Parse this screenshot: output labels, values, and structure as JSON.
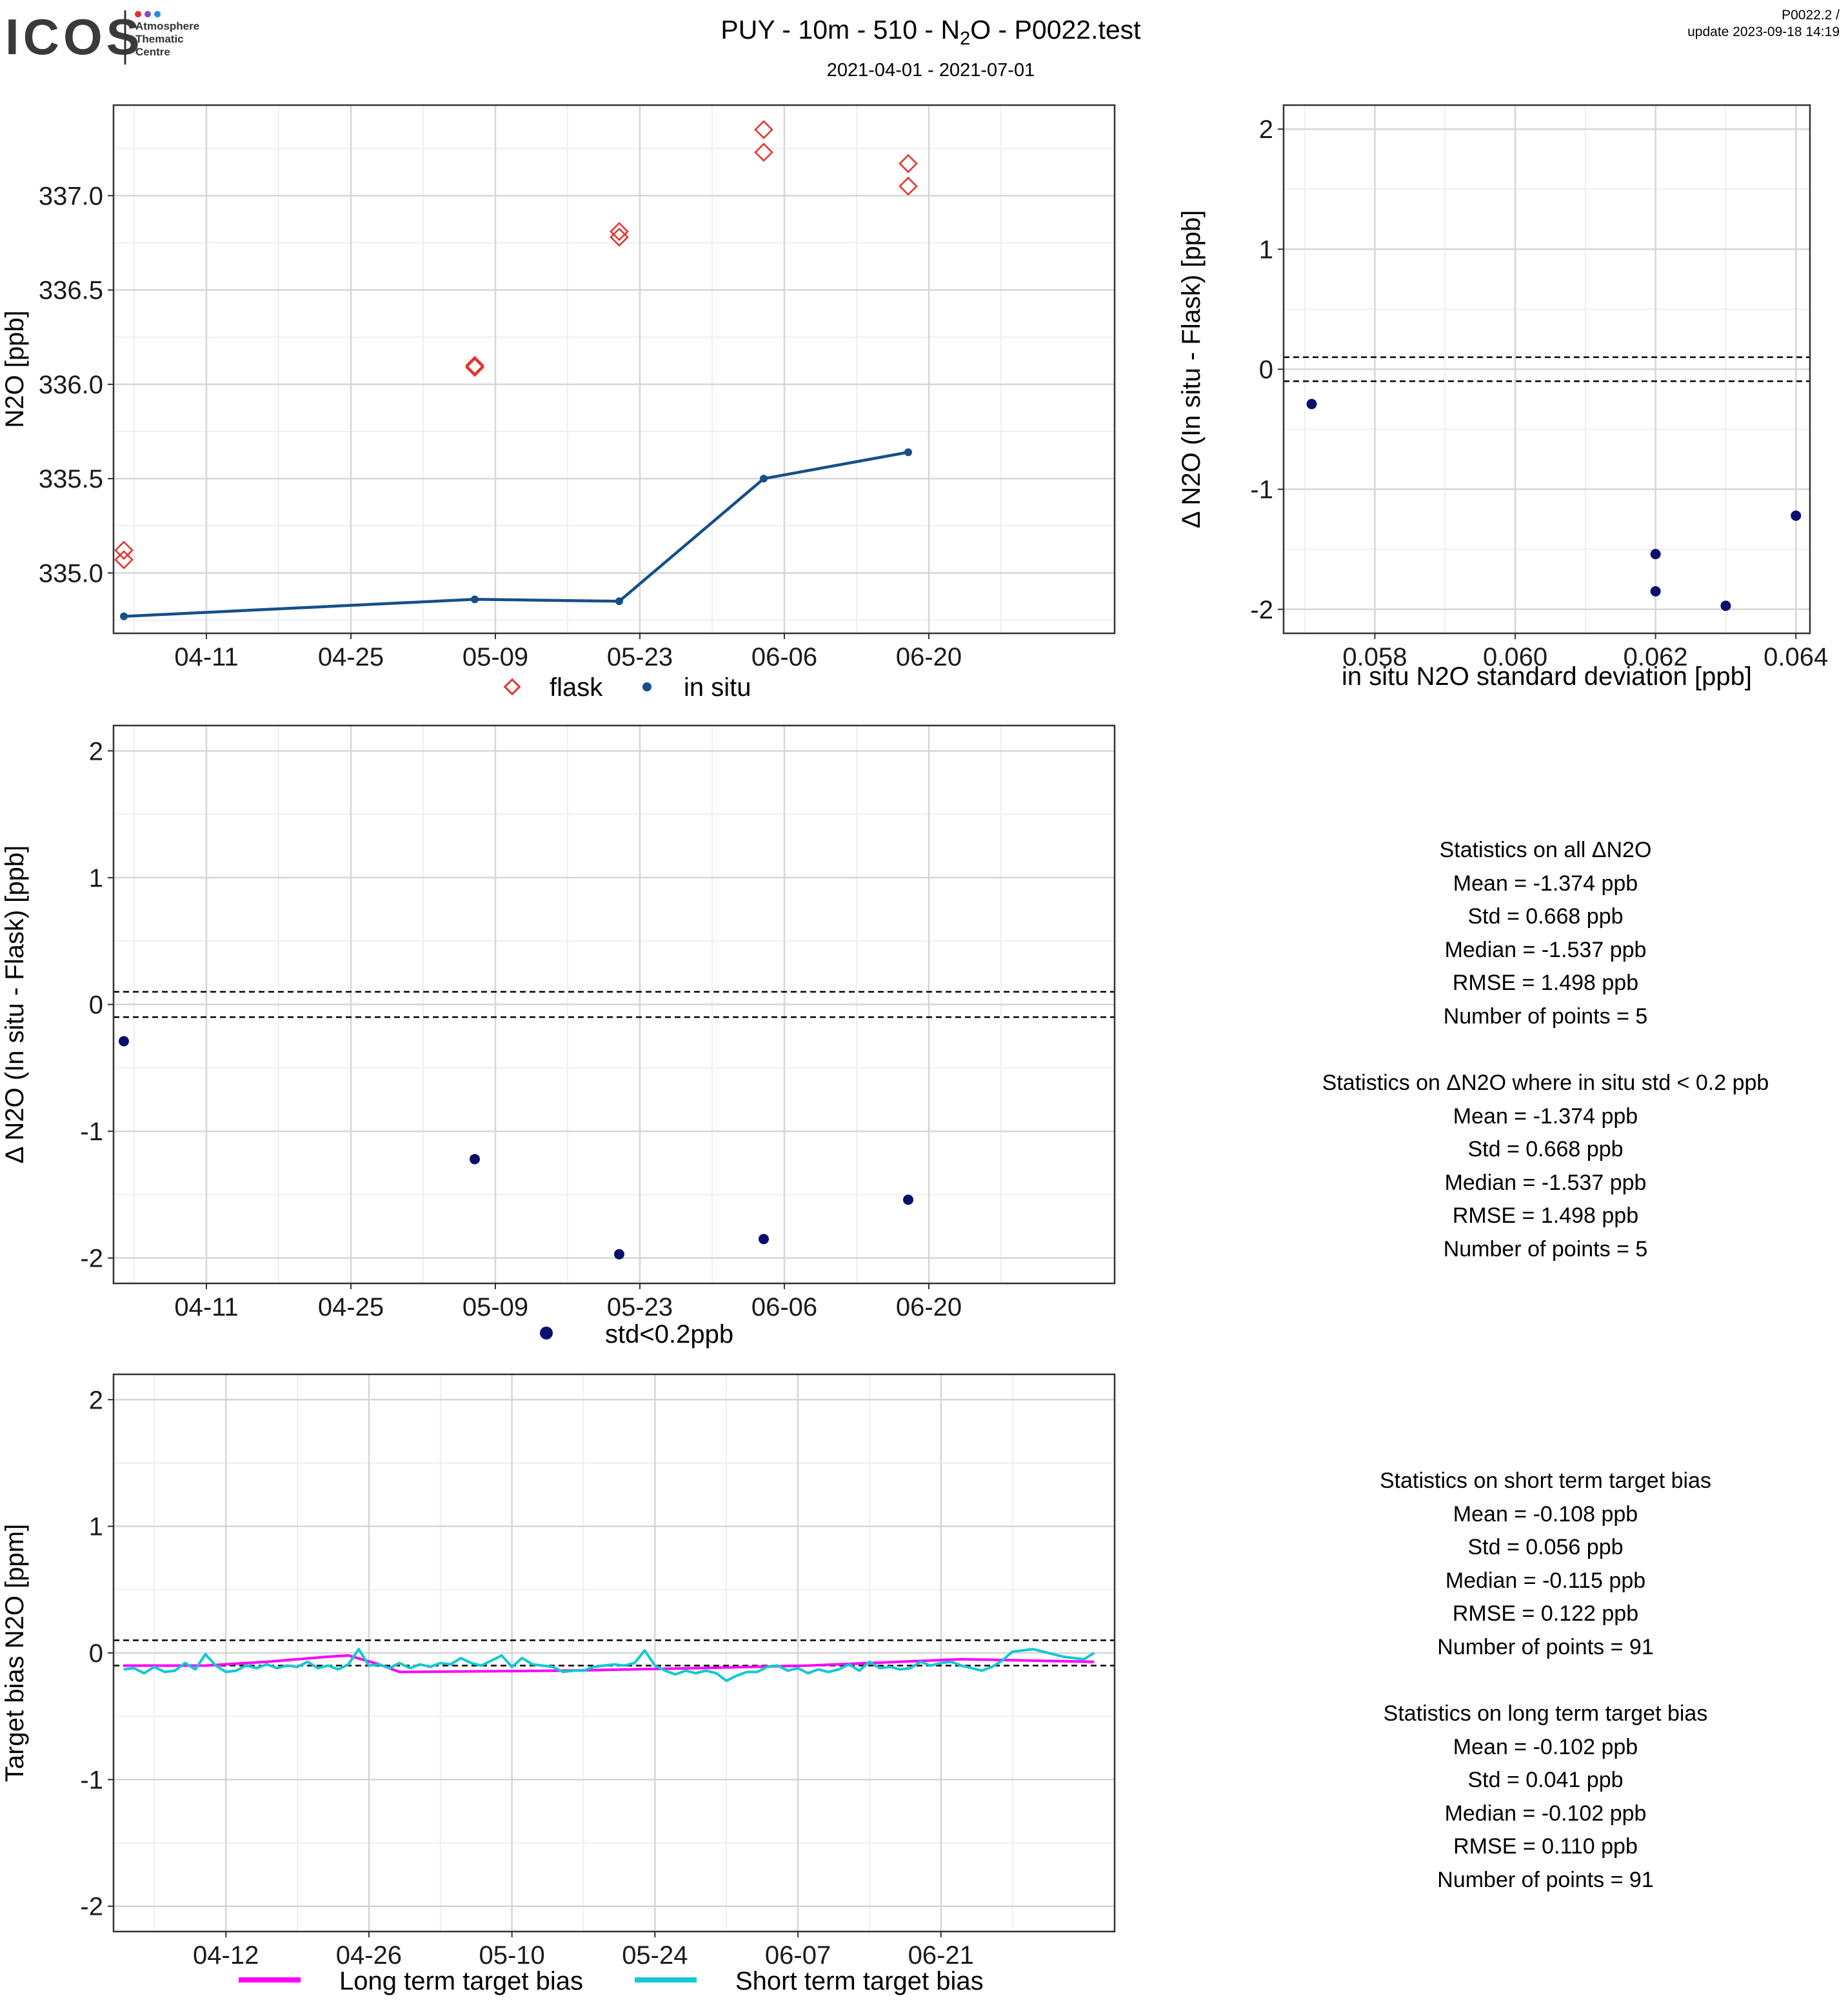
{
  "header": {
    "logo_text": "ICOS",
    "logo_subtitle_lines": [
      "Atmosphere",
      "Thematic",
      "Centre"
    ],
    "title_prefix": "PUY - 10m - 510 - N",
    "title_subscript": "2",
    "title_suffix": "O - P0022.test",
    "date_range": "2021-04-01 - 2021-07-01",
    "version": "P0022.2 /",
    "update": "update  2023-09-18 14:19"
  },
  "colors": {
    "flask": "#e8302a",
    "in_situ": "#164f8a",
    "delta_points": "#0a0f6e",
    "long_term": "#ff00ff",
    "short_term": "#14c8d2",
    "grid_major": "#d6d6d6",
    "grid_minor": "#efefef"
  },
  "chart_data": [
    {
      "id": "timeseries",
      "type": "scatter",
      "ylabel": "N2O [ppb]",
      "xlabel": "",
      "xlim": [
        "2021-04-02",
        "2021-07-08"
      ],
      "ylim": [
        334.68,
        337.48
      ],
      "x_ticks": [
        "04-11",
        "04-25",
        "05-09",
        "05-23",
        "06-06",
        "06-20"
      ],
      "x_tick_dates": [
        "2021-04-11",
        "2021-04-25",
        "2021-05-09",
        "2021-05-23",
        "2021-06-06",
        "2021-06-20"
      ],
      "y_ticks": [
        335.0,
        335.5,
        336.0,
        336.5,
        337.0
      ],
      "y_tick_labels": [
        "335.0",
        "335.5",
        "336.0",
        "336.5",
        "337.0"
      ],
      "grid": true,
      "legend_position": "bottom",
      "series": [
        {
          "name": "flask",
          "marker": "diamond-open",
          "points": [
            {
              "x": "2021-04-03",
              "y": 335.12
            },
            {
              "x": "2021-04-03",
              "y": 335.07
            },
            {
              "x": "2021-05-07",
              "y": 336.1
            },
            {
              "x": "2021-05-07",
              "y": 336.09
            },
            {
              "x": "2021-05-21",
              "y": 336.81
            },
            {
              "x": "2021-05-21",
              "y": 336.78
            },
            {
              "x": "2021-06-04",
              "y": 337.35
            },
            {
              "x": "2021-06-04",
              "y": 337.23
            },
            {
              "x": "2021-06-18",
              "y": 337.17
            },
            {
              "x": "2021-06-18",
              "y": 337.05
            }
          ]
        },
        {
          "name": "in situ",
          "marker": "dot-line",
          "points": [
            {
              "x": "2021-04-03",
              "y": 334.77
            },
            {
              "x": "2021-05-07",
              "y": 334.86
            },
            {
              "x": "2021-05-21",
              "y": 334.85
            },
            {
              "x": "2021-06-04",
              "y": 335.5
            },
            {
              "x": "2021-06-18",
              "y": 335.64
            }
          ]
        }
      ]
    },
    {
      "id": "delta_vs_std",
      "type": "scatter",
      "ylabel": "Δ N2O (In situ - Flask) [ppb]",
      "xlabel": "in situ N2O standard deviation [ppb]",
      "xlim": [
        0.0567,
        0.0642
      ],
      "ylim": [
        -2.2,
        2.2
      ],
      "x_ticks": [
        0.058,
        0.06,
        0.062,
        0.064
      ],
      "x_tick_labels": [
        "0.058",
        "0.060",
        "0.062",
        "0.064"
      ],
      "y_ticks": [
        -2,
        -1,
        0,
        1,
        2
      ],
      "y_tick_labels": [
        "-2",
        "-1",
        "0",
        "1",
        "2"
      ],
      "hlines": [
        0.1,
        -0.1
      ],
      "grid": true,
      "series": [
        {
          "name": "",
          "points": [
            {
              "x": 0.0571,
              "y": -0.29
            },
            {
              "x": 0.062,
              "y": -1.54
            },
            {
              "x": 0.062,
              "y": -1.85
            },
            {
              "x": 0.063,
              "y": -1.97
            },
            {
              "x": 0.064,
              "y": -1.22
            }
          ]
        }
      ]
    },
    {
      "id": "delta_timeseries",
      "type": "scatter",
      "ylabel": "Δ N2O (In situ - Flask) [ppb]",
      "xlabel": "",
      "xlim": [
        "2021-04-02",
        "2021-07-08"
      ],
      "ylim": [
        -2.2,
        2.2
      ],
      "x_ticks": [
        "04-11",
        "04-25",
        "05-09",
        "05-23",
        "06-06",
        "06-20"
      ],
      "x_tick_dates": [
        "2021-04-11",
        "2021-04-25",
        "2021-05-09",
        "2021-05-23",
        "2021-06-06",
        "2021-06-20"
      ],
      "y_ticks": [
        -2,
        -1,
        0,
        1,
        2
      ],
      "y_tick_labels": [
        "-2",
        "-1",
        "0",
        "1",
        "2"
      ],
      "hlines": [
        0.1,
        -0.1
      ],
      "grid": true,
      "legend_position": "bottom",
      "series": [
        {
          "name": "std<0.2ppb",
          "points": [
            {
              "x": "2021-04-03",
              "y": -0.29
            },
            {
              "x": "2021-05-07",
              "y": -1.22
            },
            {
              "x": "2021-05-21",
              "y": -1.97
            },
            {
              "x": "2021-06-04",
              "y": -1.85
            },
            {
              "x": "2021-06-18",
              "y": -1.54
            }
          ]
        }
      ]
    },
    {
      "id": "target_bias",
      "type": "line",
      "ylabel": "Target bias N2O [ppm]",
      "xlabel": "",
      "xlim": [
        "2021-04-01",
        "2021-07-08"
      ],
      "ylim": [
        -2.2,
        2.2
      ],
      "x_ticks": [
        "04-12",
        "04-26",
        "05-10",
        "05-24",
        "06-07",
        "06-21"
      ],
      "x_tick_dates": [
        "2021-04-12",
        "2021-04-26",
        "2021-05-10",
        "2021-05-24",
        "2021-06-07",
        "2021-06-21"
      ],
      "y_ticks": [
        -2,
        -1,
        0,
        1,
        2
      ],
      "y_tick_labels": [
        "-2",
        "-1",
        "0",
        "1",
        "2"
      ],
      "hlines": [
        0.1,
        -0.1
      ],
      "grid": true,
      "legend_position": "bottom",
      "series": [
        {
          "name": "Long term target bias",
          "x": [
            "2021-04-02",
            "2021-04-10",
            "2021-04-16",
            "2021-04-22",
            "2021-04-24",
            "2021-04-27",
            "2021-04-29",
            "2021-05-15",
            "2021-05-28",
            "2021-06-08",
            "2021-06-23",
            "2021-07-06"
          ],
          "values": [
            -0.1,
            -0.1,
            -0.07,
            -0.03,
            -0.02,
            -0.09,
            -0.15,
            -0.14,
            -0.12,
            -0.1,
            -0.05,
            -0.07
          ]
        },
        {
          "name": "Short term target bias",
          "x": [
            "2021-04-02",
            "2021-04-03",
            "2021-04-04",
            "2021-04-05",
            "2021-04-06",
            "2021-04-07",
            "2021-04-08",
            "2021-04-09",
            "2021-04-10",
            "2021-04-11",
            "2021-04-12",
            "2021-04-13",
            "2021-04-14",
            "2021-04-15",
            "2021-04-16",
            "2021-04-17",
            "2021-04-18",
            "2021-04-19",
            "2021-04-20",
            "2021-04-21",
            "2021-04-22",
            "2021-04-23",
            "2021-04-24",
            "2021-04-25",
            "2021-04-26",
            "2021-04-27",
            "2021-04-28",
            "2021-04-29",
            "2021-04-30",
            "2021-05-01",
            "2021-05-02",
            "2021-05-03",
            "2021-05-04",
            "2021-05-05",
            "2021-05-06",
            "2021-05-07",
            "2021-05-08",
            "2021-05-09",
            "2021-05-10",
            "2021-05-11",
            "2021-05-12",
            "2021-05-13",
            "2021-05-14",
            "2021-05-15",
            "2021-05-16",
            "2021-05-17",
            "2021-05-18",
            "2021-05-19",
            "2021-05-20",
            "2021-05-21",
            "2021-05-22",
            "2021-05-23",
            "2021-05-24",
            "2021-05-25",
            "2021-05-26",
            "2021-05-27",
            "2021-05-28",
            "2021-05-29",
            "2021-05-30",
            "2021-05-31",
            "2021-06-01",
            "2021-06-02",
            "2021-06-03",
            "2021-06-04",
            "2021-06-05",
            "2021-06-06",
            "2021-06-07",
            "2021-06-08",
            "2021-06-09",
            "2021-06-10",
            "2021-06-11",
            "2021-06-12",
            "2021-06-13",
            "2021-06-14",
            "2021-06-15",
            "2021-06-16",
            "2021-06-17",
            "2021-06-18",
            "2021-06-19",
            "2021-06-20",
            "2021-06-21",
            "2021-06-22",
            "2021-06-23",
            "2021-06-24",
            "2021-06-25",
            "2021-06-26",
            "2021-06-27",
            "2021-06-28",
            "2021-06-29",
            "2021-06-30",
            "2021-07-01",
            "2021-07-02",
            "2021-07-03",
            "2021-07-04",
            "2021-07-05",
            "2021-07-06"
          ],
          "values": [
            -0.13,
            -0.12,
            -0.16,
            -0.11,
            -0.15,
            -0.14,
            -0.08,
            -0.13,
            -0.01,
            -0.1,
            -0.15,
            -0.14,
            -0.1,
            -0.12,
            -0.09,
            -0.12,
            -0.1,
            -0.11,
            -0.07,
            -0.12,
            -0.1,
            -0.13,
            -0.09,
            0.03,
            -0.1,
            -0.09,
            -0.12,
            -0.08,
            -0.12,
            -0.09,
            -0.11,
            -0.08,
            -0.09,
            -0.04,
            -0.08,
            -0.1,
            -0.06,
            -0.02,
            -0.11,
            -0.04,
            -0.09,
            -0.1,
            -0.11,
            -0.15,
            -0.14,
            -0.14,
            -0.11,
            -0.1,
            -0.09,
            -0.1,
            -0.08,
            0.02,
            -0.1,
            -0.14,
            -0.17,
            -0.14,
            -0.16,
            -0.14,
            -0.16,
            -0.22,
            -0.18,
            -0.15,
            -0.15,
            -0.11,
            -0.1,
            -0.14,
            -0.12,
            -0.16,
            -0.13,
            -0.15,
            -0.13,
            -0.09,
            -0.14,
            -0.07,
            -0.12,
            -0.11,
            -0.13,
            -0.12,
            -0.07,
            -0.1,
            -0.08,
            -0.07,
            -0.1,
            -0.12,
            -0.14,
            -0.11,
            -0.06,
            0.01,
            0.02,
            0.03,
            0.01,
            -0.01,
            -0.03,
            -0.04,
            -0.05,
            0.0
          ]
        }
      ]
    }
  ],
  "legends": {
    "ts": {
      "flask": "flask",
      "in_situ": "in situ"
    },
    "delta": {
      "std": "std<0.2ppb"
    },
    "bias": {
      "long": "Long term target bias",
      "short": "Short term target bias"
    }
  },
  "stats": {
    "all": {
      "title": "Statistics on all ΔN2O",
      "lines": [
        "Mean =  -1.374 ppb",
        "Std =  0.668 ppb",
        "Median =  -1.537 ppb",
        "RMSE =  1.498 ppb",
        "Number of points =  5"
      ]
    },
    "filtered": {
      "title": "Statistics on ΔN2O where in situ std < 0.2 ppb",
      "lines": [
        "Mean =  -1.374 ppb",
        "Std =  0.668 ppb",
        "Median =  -1.537 ppb",
        "RMSE =  1.498 ppb",
        "Number of points =  5"
      ]
    },
    "short_term": {
      "title": "Statistics on short term target bias",
      "lines": [
        "Mean =  -0.108 ppb",
        "Std =  0.056 ppb",
        "Median =  -0.115 ppb",
        "RMSE =  0.122 ppb",
        "Number of points =  91"
      ]
    },
    "long_term": {
      "title": "Statistics on long term target bias",
      "lines": [
        "Mean =  -0.102 ppb",
        "Std =  0.041 ppb",
        "Median =  -0.102 ppb",
        "RMSE =  0.110 ppb",
        "Number of points =  91"
      ]
    }
  }
}
